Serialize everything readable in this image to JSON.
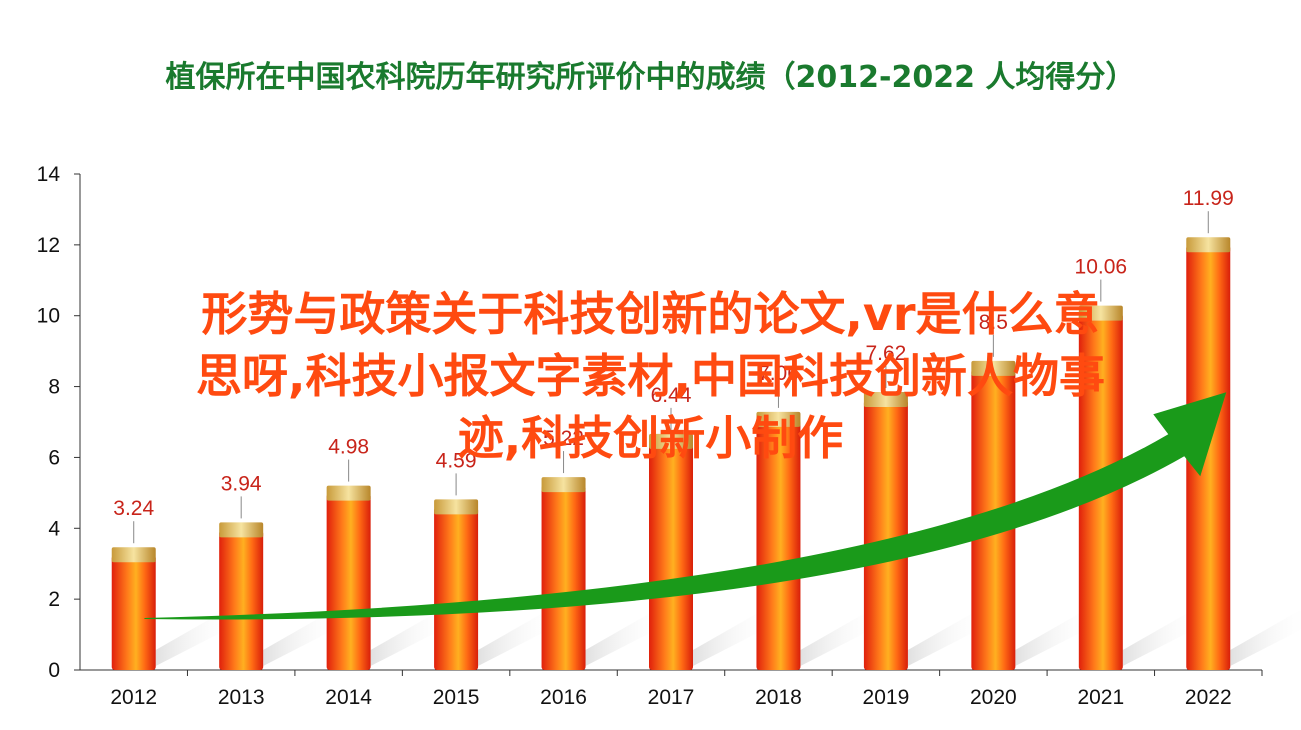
{
  "title": "植保所在中国农科院历年研究所评价中的成绩（2012-2022  人均得分）",
  "overlay_text": "形势与政策关于科技创新的论文,vr是什么意\n思呀,科技小报文字素材,中国科技创新人物事\n迹,科技创新小制作",
  "chart_data": {
    "type": "bar",
    "title": "植保所在中国农科院历年研究所评价中的成绩（2012-2022  人均得分）",
    "categories": [
      "2012",
      "2013",
      "2014",
      "2015",
      "2016",
      "2017",
      "2018",
      "2019",
      "2020",
      "2021",
      "2022"
    ],
    "values": [
      3.24,
      3.94,
      4.98,
      4.59,
      5.22,
      6.44,
      7.06,
      7.62,
      8.5,
      10.06,
      11.99
    ],
    "data_labels": [
      "3.24",
      "3.94",
      "4.98",
      "4.59",
      "5.22",
      "6.44",
      "7.06",
      "7.62",
      "8.5",
      "10.06",
      "11.99"
    ],
    "ylim": [
      0,
      14
    ],
    "yticks": [
      0,
      2,
      4,
      6,
      8,
      10,
      12,
      14
    ],
    "ytick_labels": [
      "0",
      "2",
      "4",
      "6",
      "8",
      "10",
      "12",
      "14"
    ],
    "xlabel": "",
    "ylabel": "",
    "grid": false,
    "trend_arrow": true,
    "colors": {
      "bar": "#ff4a10",
      "bar_cap": "#e8c060",
      "label": "#c8241a",
      "arrow": "#1a9a1a",
      "title": "#1a7a2e"
    }
  }
}
